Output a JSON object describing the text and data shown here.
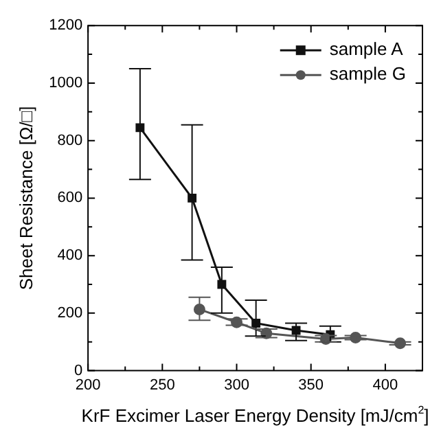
{
  "chart_data": {
    "type": "line",
    "xlabel": "KrF Excimer Laser Energy Density [mJ/cm$^{2}$]",
    "ylabel": "Sheet Resistance [Ω/□]",
    "xlim": [
      200,
      425
    ],
    "xticks": [
      200,
      250,
      300,
      350,
      400
    ],
    "ylim": [
      0,
      1200
    ],
    "yticks": [
      0,
      200,
      400,
      600,
      800,
      1000,
      1200
    ],
    "grid": false,
    "legend": "top right",
    "line_style": "solid",
    "series": [
      {
        "name": "sample A",
        "color": "#111111",
        "marker": "square",
        "x": [
          235,
          270,
          290,
          313,
          340,
          363
        ],
        "values": [
          845,
          600,
          300,
          165,
          140,
          125
        ],
        "errors": [
          [
            665,
            1050
          ],
          [
            385,
            855
          ],
          [
            200,
            360
          ],
          [
            120,
            245
          ],
          [
            105,
            165
          ],
          [
            100,
            155
          ]
        ]
      },
      {
        "name": "sample G",
        "color": "#555555",
        "marker": "circle",
        "x": [
          275,
          300,
          320,
          360,
          380,
          410
        ],
        "values": [
          213,
          168,
          130,
          110,
          115,
          95
        ],
        "errors": [
          [
            175,
            255
          ],
          [
            158,
            180
          ],
          [
            115,
            145
          ],
          [
            100,
            122
          ],
          [
            108,
            122
          ],
          [
            90,
            100
          ]
        ]
      }
    ]
  }
}
